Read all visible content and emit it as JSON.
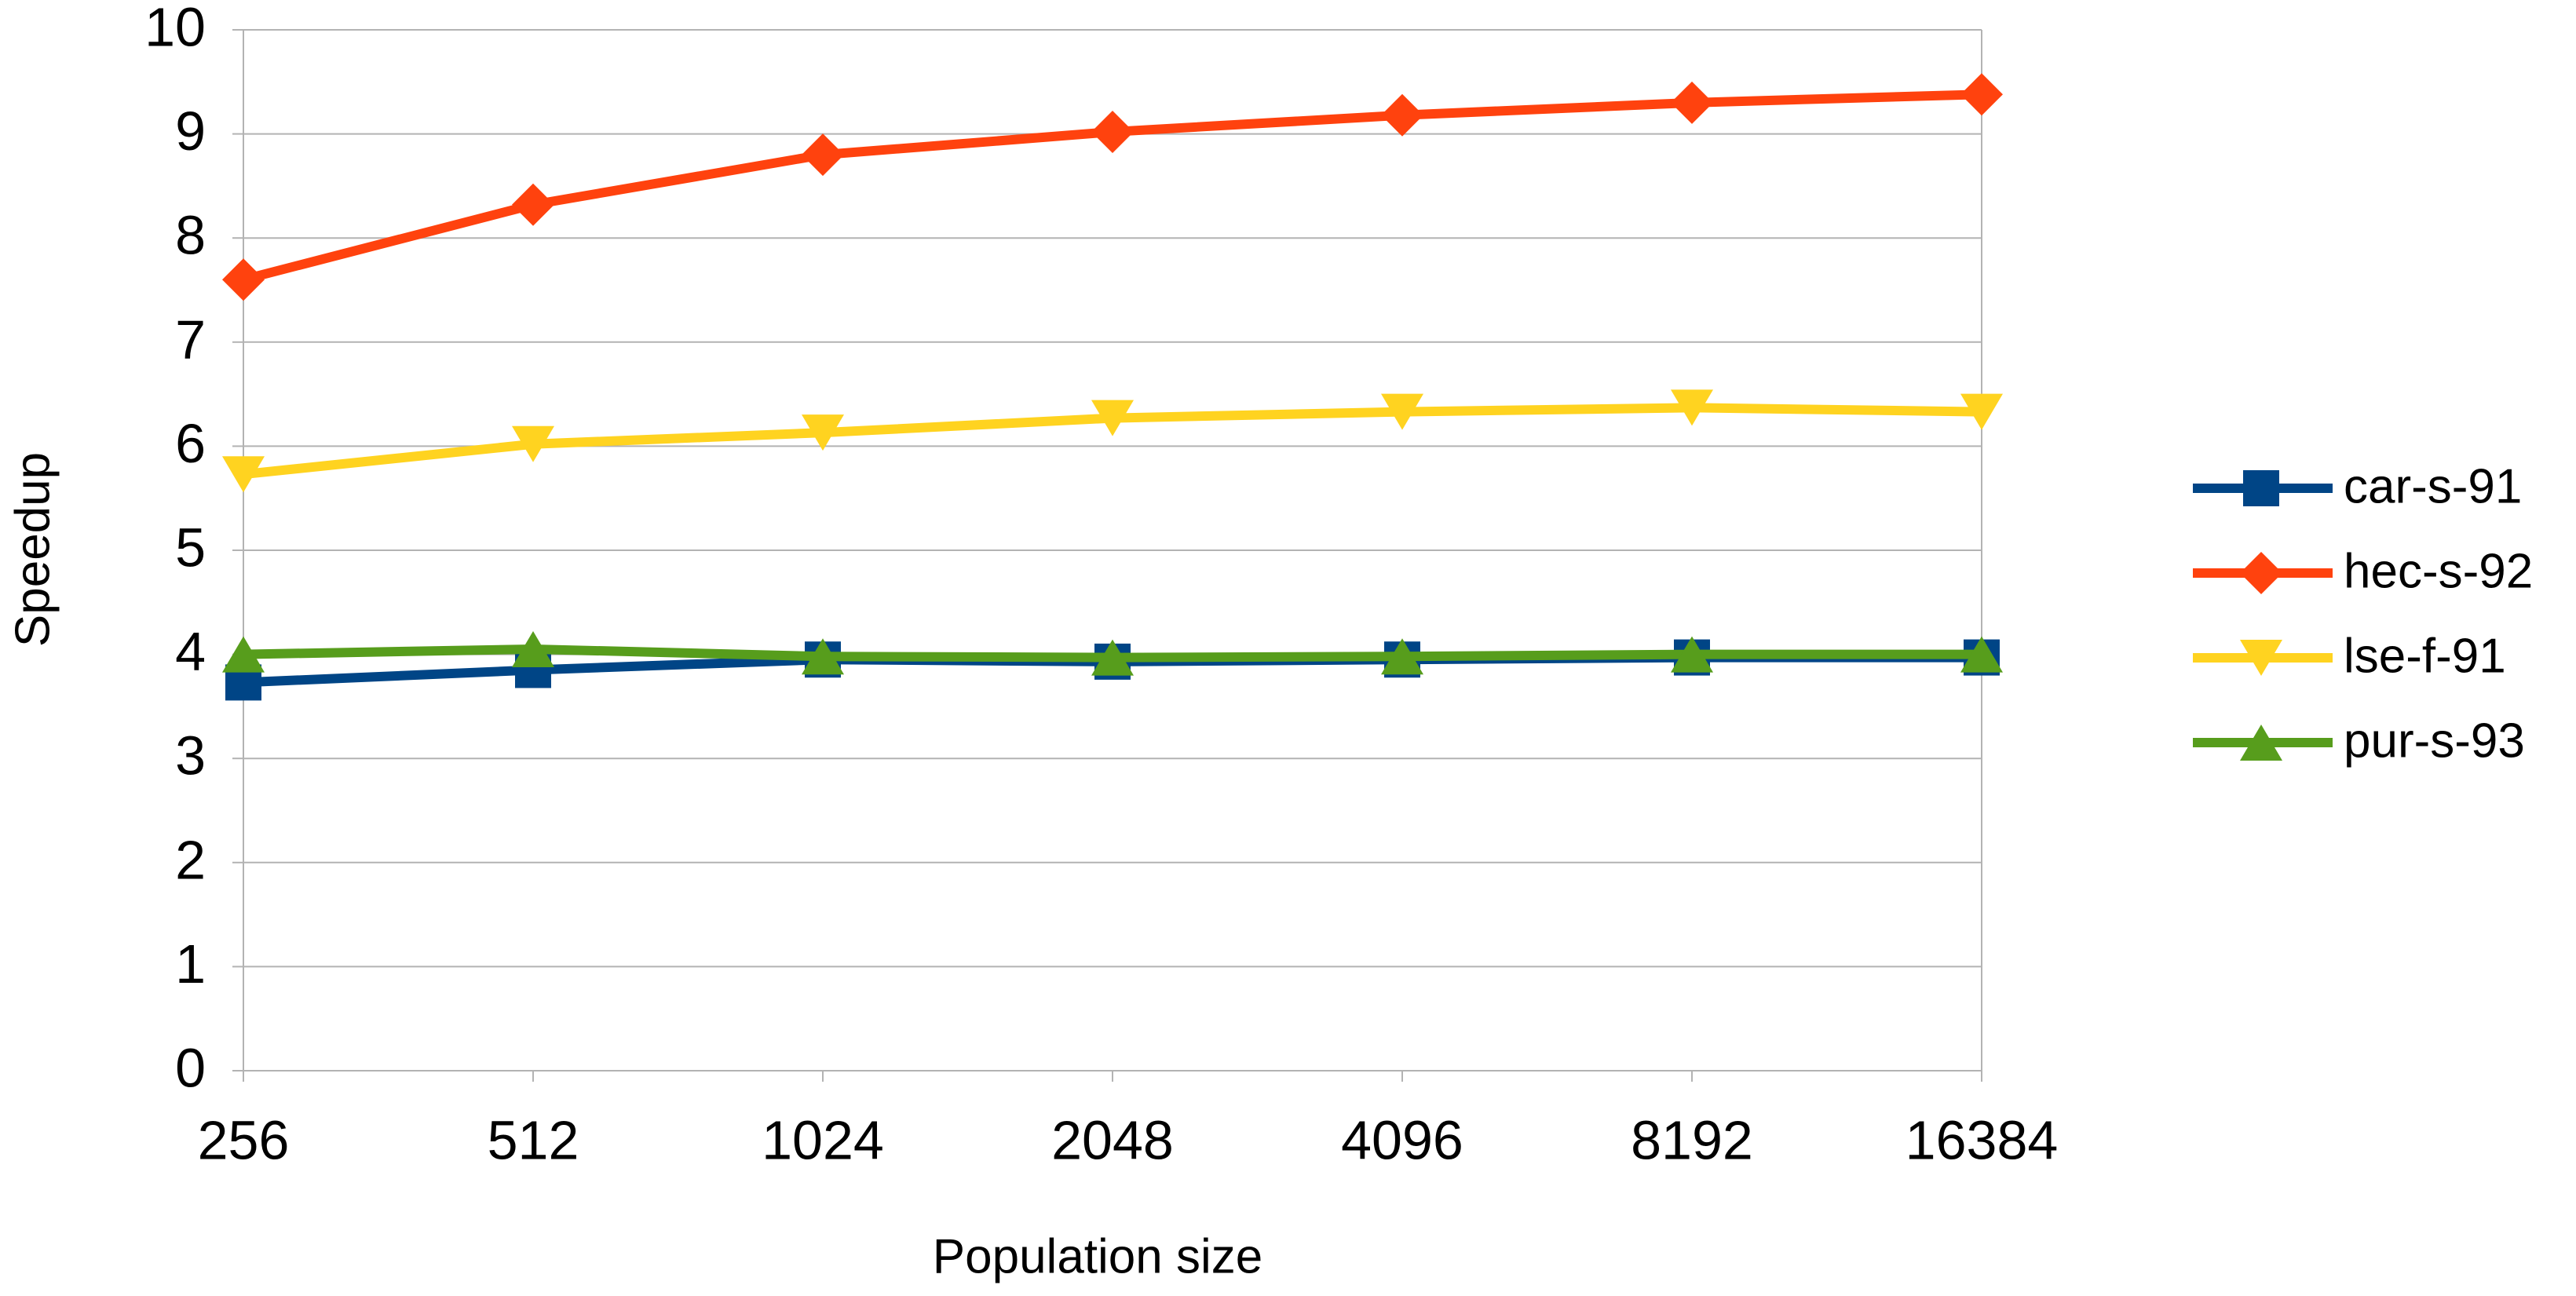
{
  "chart_data": {
    "type": "line",
    "x_label": "Population size",
    "y_label": "Speedup",
    "categories": [
      "256",
      "512",
      "1024",
      "2048",
      "4096",
      "8192",
      "16384"
    ],
    "ylim": [
      0,
      10
    ],
    "yticks": [
      0,
      1,
      2,
      3,
      4,
      5,
      6,
      7,
      8,
      9,
      10
    ],
    "grid": true,
    "legend": "right",
    "series": [
      {
        "name": "car-s-91",
        "color": "#004586",
        "marker": "square",
        "values": [
          3.73,
          3.85,
          3.95,
          3.93,
          3.95,
          3.97,
          3.97
        ]
      },
      {
        "name": "hec-s-92",
        "color": "#ff420e",
        "marker": "diamond",
        "values": [
          7.6,
          8.32,
          8.8,
          9.02,
          9.18,
          9.3,
          9.38
        ]
      },
      {
        "name": "lse-f-91",
        "color": "#ffd320",
        "marker": "triangle-down",
        "values": [
          5.73,
          6.02,
          6.13,
          6.27,
          6.33,
          6.37,
          6.33
        ]
      },
      {
        "name": "pur-s-93",
        "color": "#579d1c",
        "marker": "triangle-up",
        "values": [
          4.0,
          4.05,
          3.98,
          3.97,
          3.98,
          4.0,
          4.0
        ]
      }
    ]
  }
}
